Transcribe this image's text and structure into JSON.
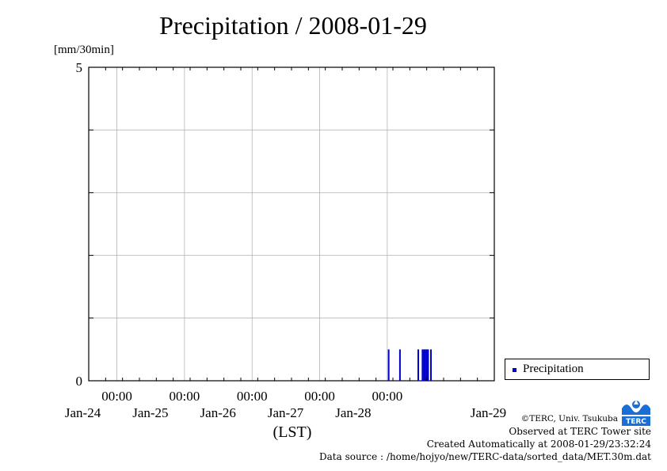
{
  "title": "Precipitation / 2008-01-29",
  "unit_label": "[mm/30min]",
  "chart_data": {
    "type": "bar",
    "title": "Precipitation / 2008-01-29",
    "ylabel": "[mm/30min]",
    "xlabel": "(LST)",
    "ylim": [
      0,
      5
    ],
    "y_tick_labels": [
      "0",
      "5"
    ],
    "xlim": [
      "2008-01-23 14:00",
      "2008-01-29 14:00"
    ],
    "x_ticks": [
      {
        "time": "00:00",
        "date": "Jan-24",
        "t": "2008-01-24 00:00"
      },
      {
        "time": "00:00",
        "date": "Jan-25",
        "t": "2008-01-25 00:00"
      },
      {
        "time": "00:00",
        "date": "Jan-26",
        "t": "2008-01-26 00:00"
      },
      {
        "time": "00:00",
        "date": "Jan-27",
        "t": "2008-01-27 00:00"
      },
      {
        "time": "00:00",
        "date": "Jan-28",
        "t": "2008-01-28 00:00"
      }
    ],
    "extra_date_label": {
      "date": "Jan-29",
      "t": "2008-01-29 00:00"
    },
    "grid": true,
    "legend_position": "bottom-right outside",
    "series": [
      {
        "name": "Precipitation",
        "color": "#0000cc",
        "points": [
          {
            "t": "2008-01-28 00:30",
            "value": 0.5
          },
          {
            "t": "2008-01-28 04:30",
            "value": 0.5
          },
          {
            "t": "2008-01-28 11:00",
            "value": 0.5
          },
          {
            "t": "2008-01-28 12:30",
            "value": 0.5
          },
          {
            "t": "2008-01-28 13:00",
            "value": 0.5
          },
          {
            "t": "2008-01-28 13:30",
            "value": 0.5
          },
          {
            "t": "2008-01-28 14:00",
            "value": 0.5
          },
          {
            "t": "2008-01-28 14:30",
            "value": 0.5
          },
          {
            "t": "2008-01-28 15:30",
            "value": 0.5
          }
        ]
      }
    ]
  },
  "legend": {
    "label": "Precipitation",
    "color": "#0000cc"
  },
  "credits": {
    "copyright": "©TERC, Univ. Tsukuba",
    "observed": "Observed at TERC Tower site",
    "created": "Created Automatically at 2008-01-29/23:32:24",
    "source": "Data source : /home/hojyo/new/TERC-data/sorted_data/MET.30m.dat"
  },
  "logo_text": "TERC",
  "logo_color": "#1a6fd6"
}
